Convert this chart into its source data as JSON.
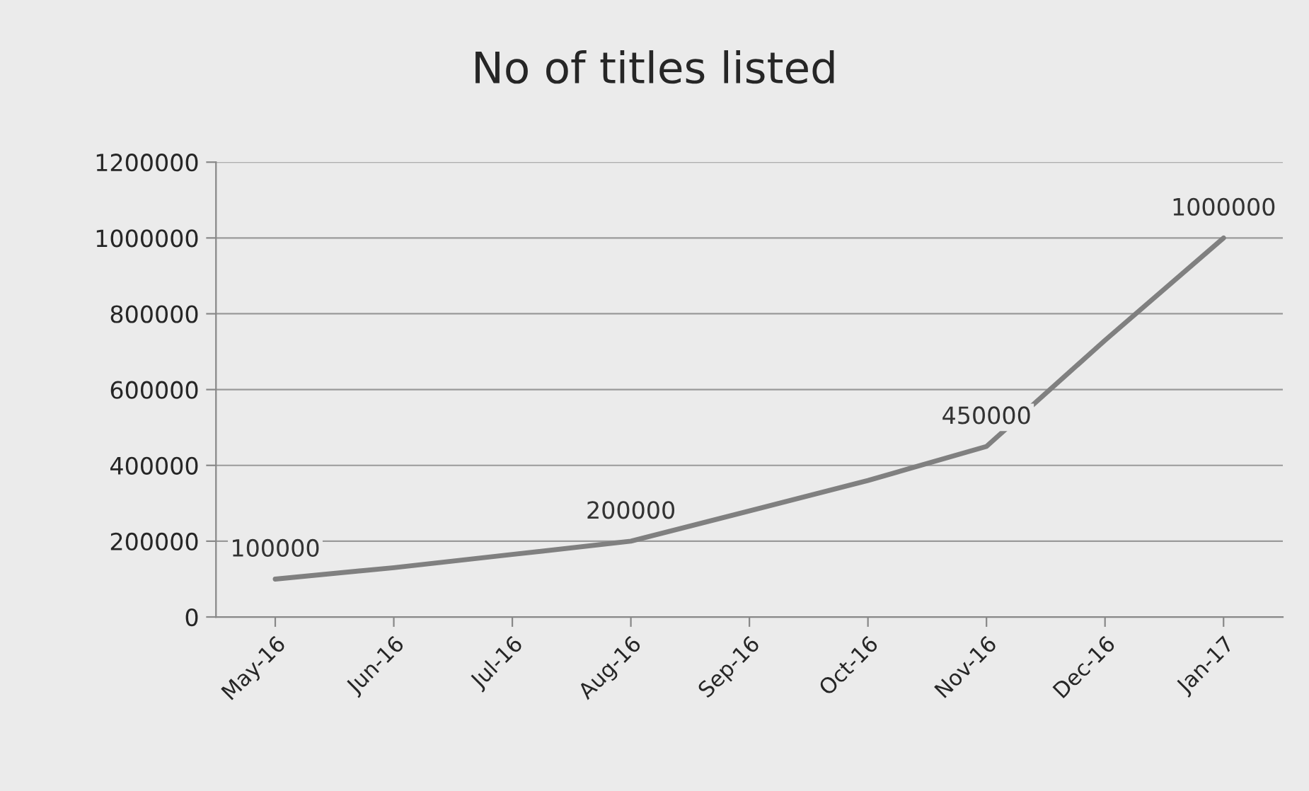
{
  "chart_data": {
    "type": "line",
    "title": "No of titles listed",
    "categories": [
      "May-16",
      "Jun-16",
      "Jul-16",
      "Aug-16",
      "Sep-16",
      "Oct-16",
      "Nov-16",
      "Dec-16",
      "Jan-17"
    ],
    "series": [
      {
        "color": "#808080",
        "values": [
          100000,
          130000,
          165000,
          200000,
          280000,
          360000,
          450000,
          730000,
          1000000
        ],
        "value_labels": [
          "100000",
          null,
          null,
          "200000",
          null,
          null,
          "450000",
          null,
          "1000000"
        ]
      }
    ],
    "ylim": [
      0,
      1200000
    ],
    "yticks": [
      0,
      200000,
      400000,
      600000,
      800000,
      1000000,
      1200000
    ],
    "grid": "y",
    "marker": "none",
    "line_style": "solid"
  }
}
